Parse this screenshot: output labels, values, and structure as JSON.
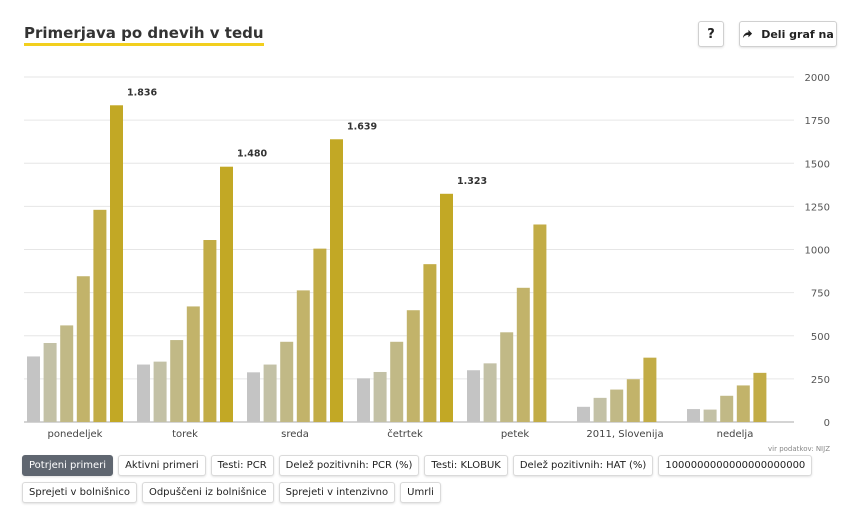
{
  "header": {
    "title": "Primerjava po dnevih v tedu",
    "help_label": "?",
    "share_label": "Deli graf na",
    "share_icon": "share-arrow-icon"
  },
  "source": "vir podatkov: NIJZ",
  "tabs": [
    {
      "label": "Potrjeni primeri",
      "active": true
    },
    {
      "label": "Aktivni primeri",
      "active": false
    },
    {
      "label": "Testi: PCR",
      "active": false
    },
    {
      "label": "Delež pozitivnih: PCR (%)",
      "active": false
    },
    {
      "label": "Testi: KLOBUK",
      "active": false
    },
    {
      "label": "Delež pozitivnih: HAT (%)",
      "active": false
    },
    {
      "label": "1000000000000000000000",
      "active": false
    },
    {
      "label": "Sprejeti v bolnišnico",
      "active": false
    },
    {
      "label": "Odpuščeni iz bolnišnice",
      "active": false
    },
    {
      "label": "Sprejeti v intenzivno",
      "active": false
    },
    {
      "label": "Umrli",
      "active": false
    }
  ],
  "chart_data": {
    "type": "bar",
    "categories": [
      "ponedeljek",
      "torek",
      "sreda",
      "četrtek",
      "petek",
      "2011, Slovenija",
      "nedelja"
    ],
    "series": [
      {
        "values": [
          380,
          333,
          288,
          253,
          300,
          88,
          75
        ],
        "color": "#c4c4c4"
      },
      {
        "values": [
          458,
          350,
          333,
          290,
          340,
          140,
          72
        ],
        "color": "#c3c1a6"
      },
      {
        "values": [
          560,
          475,
          465,
          465,
          520,
          188,
          152
        ],
        "color": "#c1b986"
      },
      {
        "values": [
          845,
          670,
          763,
          648,
          778,
          248,
          212
        ],
        "color": "#c2b36a"
      },
      {
        "values": [
          1230,
          1055,
          1005,
          915,
          1145,
          373,
          285
        ],
        "color": "#c2ac46"
      },
      {
        "values": [
          1836,
          1480,
          1639,
          1323,
          null,
          null,
          null
        ],
        "color": "#c2a825"
      }
    ],
    "data_labels": [
      {
        "category": 0,
        "value": 1836,
        "text": "1.836"
      },
      {
        "category": 1,
        "value": 1480,
        "text": "1.480"
      },
      {
        "category": 2,
        "value": 1639,
        "text": "1.639"
      },
      {
        "category": 3,
        "value": 1323,
        "text": "1.323"
      }
    ],
    "yaxis": {
      "min": 0,
      "max": 2000,
      "position": "right",
      "ticks": [
        0,
        250,
        500,
        750,
        1000,
        1250,
        1500,
        1750,
        2000
      ],
      "tick_labels": [
        "0",
        "250",
        "500",
        "750",
        "1000",
        "1250",
        "1500",
        "1750",
        "2000"
      ]
    },
    "grid": true,
    "title": "",
    "xlabel": "",
    "ylabel": ""
  }
}
